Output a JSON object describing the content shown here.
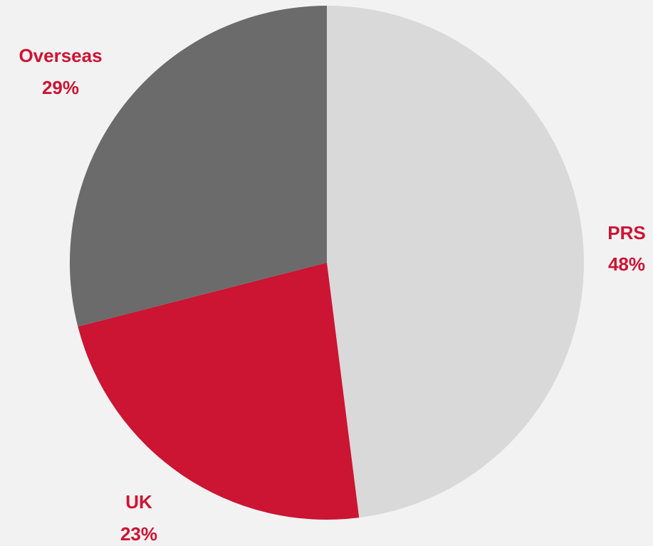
{
  "chart_data": {
    "type": "pie",
    "title": "",
    "slices": [
      {
        "label": "PRS",
        "value": 48,
        "value_label": "48%",
        "color": "#d9d9d9"
      },
      {
        "label": "UK",
        "value": 23,
        "value_label": "23%",
        "color": "#cc1433"
      },
      {
        "label": "Overseas",
        "value": 29,
        "value_label": "29%",
        "color": "#6b6b6b"
      }
    ],
    "label_color": "#cc1433",
    "background": "#f2f2f2",
    "start_angle": "12 o'clock",
    "direction": "clockwise",
    "legend": "none"
  }
}
